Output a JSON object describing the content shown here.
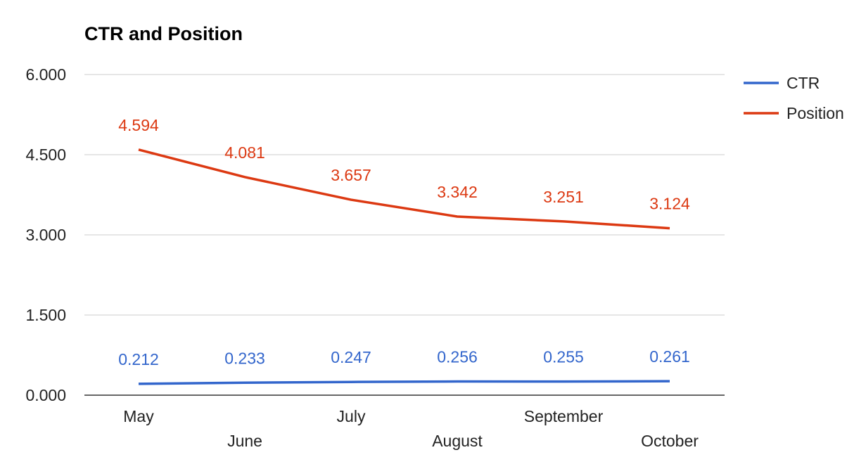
{
  "chart_data": {
    "type": "line",
    "title": "CTR and Position",
    "xlabel": "",
    "ylabel": "",
    "categories": [
      "May",
      "June",
      "July",
      "August",
      "September",
      "October"
    ],
    "ylim": [
      0,
      6
    ],
    "yticks": [
      0,
      1.5,
      3,
      4.5,
      6
    ],
    "ytick_labels": [
      "0.000",
      "1.500",
      "3.000",
      "4.500",
      "6.000"
    ],
    "grid": true,
    "legend": "right",
    "series": [
      {
        "name": "CTR",
        "color": "#3366cc",
        "values": [
          0.212,
          0.233,
          0.247,
          0.256,
          0.255,
          0.261
        ],
        "labels": [
          "0.212",
          "0.233",
          "0.247",
          "0.256",
          "0.255",
          "0.261"
        ]
      },
      {
        "name": "Position",
        "color": "#dc3912",
        "values": [
          4.594,
          4.081,
          3.657,
          3.342,
          3.251,
          3.124
        ],
        "labels": [
          "4.594",
          "4.081",
          "3.657",
          "3.342",
          "3.251",
          "3.124"
        ]
      }
    ]
  }
}
